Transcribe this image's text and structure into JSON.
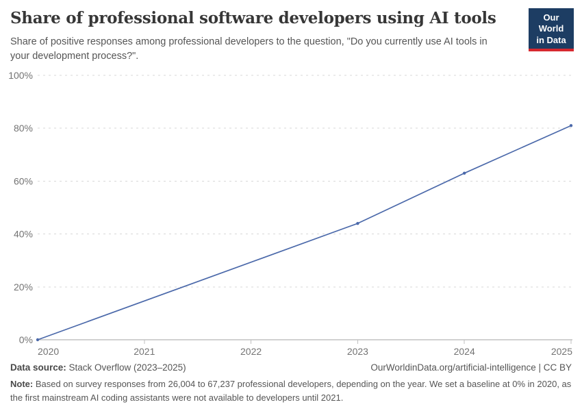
{
  "header": {
    "title": "Share of professional software developers using AI tools",
    "subtitle": "Share of positive responses among professional developers to the question, \"Do you currently use AI tools in your development process?\".",
    "logo": {
      "line1": "Our World",
      "line2": "in Data"
    }
  },
  "chart_data": {
    "type": "line",
    "title": "Share of professional software developers using AI tools",
    "x": [
      2020,
      2023,
      2024,
      2025
    ],
    "series": [
      {
        "name": "Professional software developers using AI tools",
        "values": [
          0,
          44,
          63,
          81
        ]
      }
    ],
    "unit": "%",
    "xlim": [
      2020,
      2025
    ],
    "ylim": [
      0,
      100
    ],
    "x_ticks": [
      2020,
      2021,
      2022,
      2023,
      2024,
      2025
    ],
    "y_ticks": [
      0,
      20,
      40,
      60,
      80,
      100
    ],
    "y_tick_suffix": "%",
    "grid": "horizontal-dashed",
    "legend": "none",
    "marker": "circle"
  },
  "footer": {
    "datasource_label": "Data source:",
    "datasource_value": " Stack Overflow (2023–2025)",
    "attribution": "OurWorldinData.org/artificial-intelligence | CC BY",
    "note_label": "Note:",
    "note_text": " Based on survey responses from 26,004 to 67,237 professional developers, depending on the year. We set a baseline at 0% in 2020, as the first mainstream AI coding assistants were not available to developers until 2021."
  },
  "colors": {
    "line": "#4b69aa",
    "grid": "#d7d7d7",
    "axis": "#a3a3a3",
    "tick": "#bfbfbf",
    "tick_text": "#737373",
    "logo_navy": "#1d3d63",
    "logo_red": "#d7282f"
  }
}
